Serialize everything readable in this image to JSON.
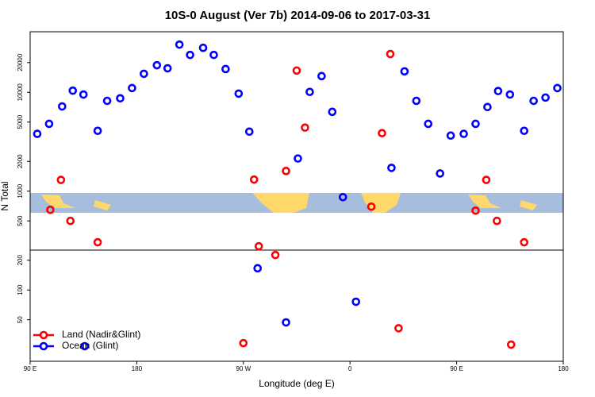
{
  "chart_data": {
    "type": "scatter",
    "title": "10S-0 August (Ver 7b)   2014-09-06 to 2017-03-31",
    "x_label": "Longitude (deg E)",
    "y_label": "N Total",
    "log_y": true,
    "legend": "bottom-left",
    "xlim": [
      90,
      540
    ],
    "xticks": [
      {
        "value": 90,
        "label": "90 E"
      },
      180,
      {
        "value": 270,
        "label": "90 W"
      },
      {
        "value": 360,
        "label": "0"
      },
      {
        "value": 450,
        "label": "90 E"
      },
      {
        "value": 540,
        "label": "180"
      }
    ],
    "ylim": [
      19,
      41000
    ],
    "yticks": [
      50,
      100,
      200,
      500,
      1000,
      2000,
      5000,
      10000,
      20000
    ],
    "series": [
      {
        "name": "Land (Nadir&Glint)",
        "color": "#ff0000",
        "x": [
          107,
          116,
          124,
          147,
          270,
          279,
          283,
          297,
          306,
          315,
          322,
          378,
          387,
          394,
          401,
          466,
          475,
          484,
          496,
          507
        ],
        "values": [
          647,
          1300,
          500,
          304,
          29,
          1310,
          277,
          226,
          1600,
          16600,
          4400,
          697,
          3860,
          24400,
          41,
          635,
          1300,
          500,
          28,
          304
        ]
      },
      {
        "name": "Ocean (Glint)",
        "color": "#0000ff",
        "x": [
          96,
          106,
          117,
          126,
          135,
          136,
          147,
          155,
          166,
          176,
          186,
          197,
          206,
          216,
          225,
          236,
          245,
          255,
          266,
          275,
          282,
          306,
          316,
          326,
          336,
          345,
          354,
          365,
          395,
          406,
          416,
          426,
          436,
          445,
          456,
          466,
          476,
          485,
          495,
          507,
          515,
          525,
          535
        ],
        "values": [
          3800,
          4800,
          7200,
          10400,
          9500,
          27,
          4080,
          8200,
          8700,
          11040,
          15400,
          18800,
          17500,
          30400,
          23900,
          28200,
          23900,
          17200,
          9700,
          4000,
          166,
          47,
          2140,
          10100,
          14600,
          6350,
          870,
          76,
          1720,
          16300,
          8200,
          4800,
          1510,
          3650,
          3800,
          4800,
          7100,
          10300,
          9500,
          4080,
          8200,
          8850,
          11040
        ]
      }
    ]
  }
}
